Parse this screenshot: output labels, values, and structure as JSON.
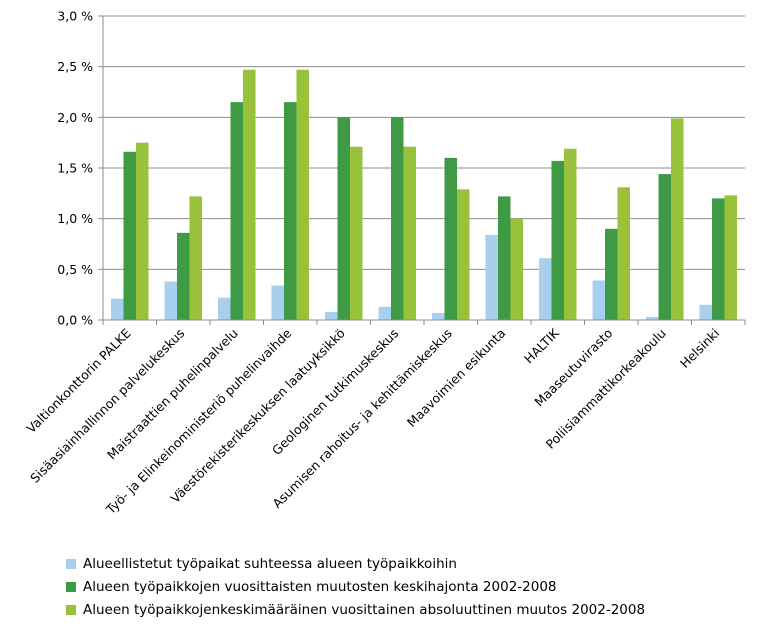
{
  "chart_data": {
    "type": "bar",
    "categories": [
      "Valtionkonttorin PALKE",
      "Sisäasiainhallinnon palvelukeskus",
      "Maistraattien  puhelinpalvelu",
      "Työ- ja Elinkeinoministeriö puhelinvaihde",
      "Väestörekisterikeskuksen laatuyksikkö",
      "Geologinen tutkimuskeskus",
      "Asumisen rahoitus- ja kehittämiskeskus",
      "Maavoimien esikunta",
      "HALTIK",
      "Maaseutuvirasto",
      "Poliisiammattikorkeakoulu",
      "Helsinki"
    ],
    "series": [
      {
        "name": "Alueellistetut työpaikat suhteessa alueen työpaikkoihin",
        "color": "#a9cfee",
        "values": [
          0.21,
          0.38,
          0.22,
          0.34,
          0.08,
          0.13,
          0.07,
          0.84,
          0.61,
          0.39,
          0.03,
          0.15
        ]
      },
      {
        "name": "Alueen työpaikkojen vuosittaisten muutosten keskihajonta 2002-2008",
        "color": "#3f9a45",
        "values": [
          1.66,
          0.86,
          2.15,
          2.15,
          2.0,
          2.0,
          1.6,
          1.22,
          1.57,
          0.9,
          1.44,
          1.2
        ]
      },
      {
        "name": "Alueen työpaikkojenkeskimääräinen vuosittainen absoluuttinen muutos 2002-2008",
        "color": "#99c23c",
        "values": [
          1.75,
          1.22,
          2.47,
          2.47,
          1.71,
          1.71,
          1.29,
          1.0,
          1.69,
          1.31,
          1.99,
          1.23
        ]
      }
    ],
    "ylim": [
      0,
      3.0
    ],
    "yticks": [
      0,
      0.5,
      1.0,
      1.5,
      2.0,
      2.5,
      3.0
    ],
    "ytick_labels": [
      "0,0 %",
      "0,5 %",
      "1,0 %",
      "1,5 %",
      "2,0 %",
      "2,5 %",
      "3,0 %"
    ],
    "grid": true,
    "legend_position": "bottom",
    "title": "",
    "xlabel": "",
    "ylabel": ""
  }
}
